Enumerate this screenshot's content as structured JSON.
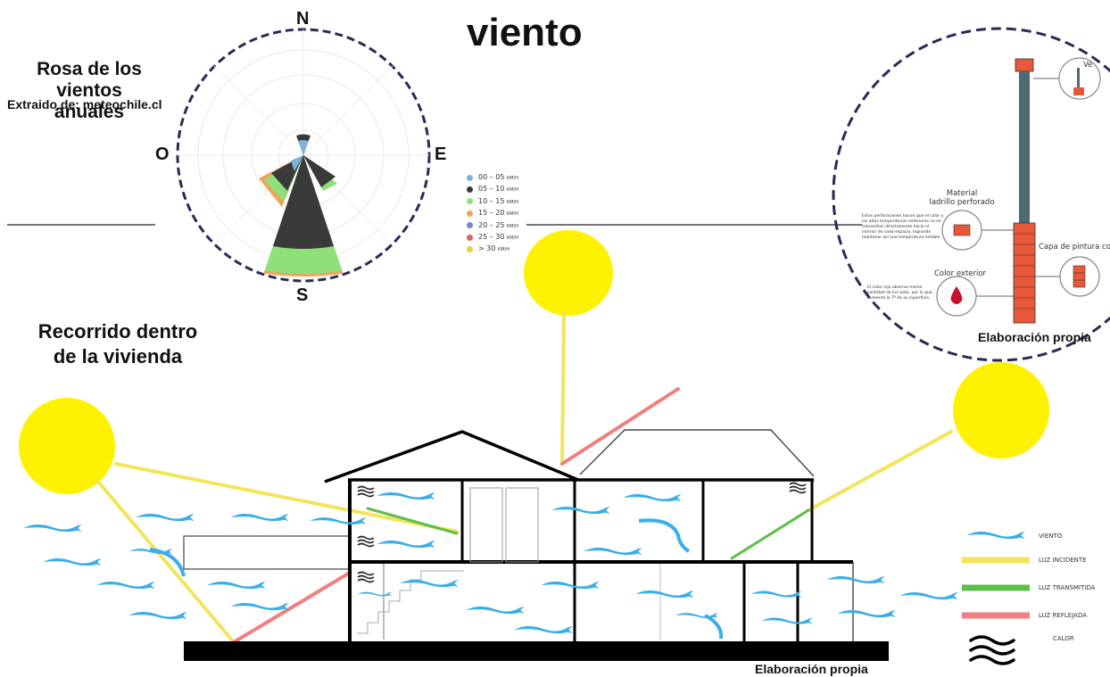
{
  "title": "viento",
  "wind_rose": {
    "title": "Rosa de los vientos anuales",
    "source": "Extraido de: meteochile.cl",
    "directions": {
      "n": "N",
      "s": "S",
      "o": "O",
      "e": "E"
    },
    "speed_legend": [
      {
        "label": "00 – 05",
        "unit": "KM/H",
        "color": "#7fb2d9"
      },
      {
        "label": "05 – 10",
        "unit": "KM/H",
        "color": "#3a3a3a"
      },
      {
        "label": "10 – 15",
        "unit": "KM/H",
        "color": "#8fe07a"
      },
      {
        "label": "15 – 20",
        "unit": "KM/H",
        "color": "#f0a35a"
      },
      {
        "label": "20 – 25",
        "unit": "KM/H",
        "color": "#7d83c9"
      },
      {
        "label": "25 – 30",
        "unit": "KM/H",
        "color": "#e0606a"
      },
      {
        "label": "> 30",
        "unit": "KM/H",
        "color": "#e6cc50"
      }
    ]
  },
  "section": {
    "title": "Recorrido dentro de la vivienda",
    "credit": "Elaboración propia",
    "legend": {
      "viento": "VIENTO",
      "luz_incidente": "LUZ INCIDENTE",
      "luz_transmitida": "LUZ TRANSMITIDA",
      "luz_reflejada": "LUZ REFLEJADA",
      "calor": "CALOR"
    },
    "colors": {
      "wind": "#3aaee8",
      "incident": "#f2e55c",
      "transmitted": "#5bbf4a",
      "reflected": "#f08080",
      "sun": "#fff200"
    }
  },
  "material_detail": {
    "credit": "Elaboración propia",
    "item_top": "Ve",
    "material_heading": "Material\nladrillo perforado",
    "material_text": "Estas perforaciones hacen que el calor y las altas temperaturas exteriores no se transmitan directamente hacia el interior de cada espacio, logrando mantener así una temperatura estable.",
    "paint_heading": "Capa de pintura color",
    "color_heading": "Color exterior",
    "color_text": "El color rojo absorve menor cantidad de luz solar, por lo que, aumenta la Tº de su superficie."
  }
}
